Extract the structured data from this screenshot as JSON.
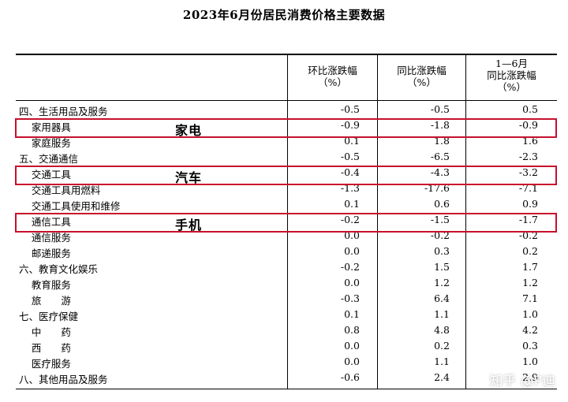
{
  "title": "2023年6月份居民消费价格主要数据",
  "headers": {
    "col1": [
      "环比涨跌幅",
      "（%）"
    ],
    "col2": [
      "同比涨跌幅",
      "（%）"
    ],
    "col3": [
      "1—6月",
      "同比涨跌幅",
      "（%）"
    ]
  },
  "rows": [
    {
      "label": "四、生活用品及服务",
      "mom": "-0.5",
      "yoy": "-0.5",
      "ytd": "0.5"
    },
    {
      "label": "    家用器具",
      "mom": "-0.9",
      "yoy": "-1.8",
      "ytd": "-0.9"
    },
    {
      "label": "    家庭服务",
      "mom": "0.1",
      "yoy": "1.8",
      "ytd": "1.6"
    },
    {
      "label": "五、交通通信",
      "mom": "-0.5",
      "yoy": "-6.5",
      "ytd": "-2.3"
    },
    {
      "label": "    交通工具",
      "mom": "-0.4",
      "yoy": "-4.3",
      "ytd": "-3.2"
    },
    {
      "label": "    交通工具用燃料",
      "mom": "-1.3",
      "yoy": "-17.6",
      "ytd": "-7.1"
    },
    {
      "label": "    交通工具使用和维修",
      "mom": "0.1",
      "yoy": "0.6",
      "ytd": "0.9"
    },
    {
      "label": "    通信工具",
      "mom": "-0.2",
      "yoy": "-1.5",
      "ytd": "-1.7"
    },
    {
      "label": "    通信服务",
      "mom": "0.0",
      "yoy": "-0.2",
      "ytd": "-0.2"
    },
    {
      "label": "    邮递服务",
      "mom": "0.0",
      "yoy": "0.3",
      "ytd": "0.2"
    },
    {
      "label": "六、教育文化娱乐",
      "mom": "-0.2",
      "yoy": "1.5",
      "ytd": "1.7"
    },
    {
      "label": "    教育服务",
      "mom": "0.0",
      "yoy": "1.2",
      "ytd": "1.2"
    },
    {
      "label": "    旅　　游",
      "mom": "-0.3",
      "yoy": "6.4",
      "ytd": "7.1"
    },
    {
      "label": "七、医疗保健",
      "mom": "0.1",
      "yoy": "1.1",
      "ytd": "1.0"
    },
    {
      "label": "    中　　药",
      "mom": "0.8",
      "yoy": "4.8",
      "ytd": "4.2"
    },
    {
      "label": "    西　　药",
      "mom": "0.0",
      "yoy": "0.2",
      "ytd": "0.3"
    },
    {
      "label": "    医疗服务",
      "mom": "0.0",
      "yoy": "1.1",
      "ytd": "1.0"
    },
    {
      "label": "八、其他用品及服务",
      "mom": "-0.6",
      "yoy": "2.4",
      "ytd": "2.9"
    }
  ],
  "annotations": {
    "appliance": "家电",
    "car": "汽车",
    "phone": "手机",
    "highlight_color": "#c8102e"
  },
  "watermark": "知乎 @P迪"
}
